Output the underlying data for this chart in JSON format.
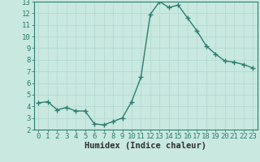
{
  "xlabel": "Humidex (Indice chaleur)",
  "x": [
    0,
    1,
    2,
    3,
    4,
    5,
    6,
    7,
    8,
    9,
    10,
    11,
    12,
    13,
    14,
    15,
    16,
    17,
    18,
    19,
    20,
    21,
    22,
    23
  ],
  "y": [
    4.3,
    4.4,
    3.7,
    3.9,
    3.6,
    3.6,
    2.5,
    2.4,
    2.7,
    3.0,
    4.4,
    6.5,
    11.9,
    13.0,
    12.5,
    12.7,
    11.6,
    10.5,
    9.2,
    8.5,
    7.9,
    7.8,
    7.6,
    7.3
  ],
  "line_color": "#2d7d6f",
  "marker": "+",
  "marker_size": 4,
  "marker_linewidth": 1.0,
  "line_width": 1.0,
  "bg_color": "#c8e8e0",
  "grid_color": "#b0d8d0",
  "ylim": [
    2,
    13
  ],
  "xlim": [
    -0.5,
    23.5
  ],
  "yticks": [
    2,
    3,
    4,
    5,
    6,
    7,
    8,
    9,
    10,
    11,
    12,
    13
  ],
  "xticks": [
    0,
    1,
    2,
    3,
    4,
    5,
    6,
    7,
    8,
    9,
    10,
    11,
    12,
    13,
    14,
    15,
    16,
    17,
    18,
    19,
    20,
    21,
    22,
    23
  ],
  "tick_label_fontsize": 6.5,
  "xlabel_fontsize": 7.5,
  "tick_color": "#2d7d6f",
  "label_color": "#2d3030"
}
